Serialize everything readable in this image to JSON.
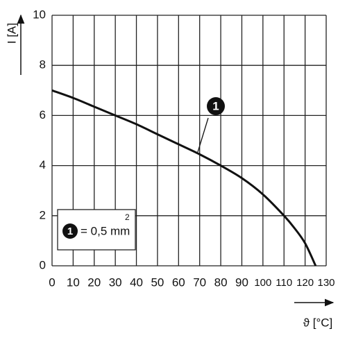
{
  "chart_data": {
    "type": "line",
    "y_label": "I [A]",
    "x_label": "ϑ [°C]",
    "x": [
      0,
      10,
      20,
      30,
      40,
      50,
      60,
      70,
      80,
      90,
      100,
      110,
      115,
      120,
      125
    ],
    "series": [
      {
        "name": "1",
        "color": "#111111",
        "values": [
          7.0,
          6.7,
          6.35,
          6.0,
          5.65,
          5.25,
          4.85,
          4.45,
          4.0,
          3.5,
          2.85,
          2.0,
          1.5,
          0.9,
          0
        ]
      }
    ],
    "legend": {
      "text": "= 0,5 mm",
      "superscript": "2"
    },
    "xlim": [
      0,
      130
    ],
    "xticks": [
      0,
      10,
      20,
      30,
      40,
      50,
      60,
      70,
      80,
      90,
      100,
      110,
      120,
      130
    ],
    "ylim": [
      0,
      10
    ],
    "yticks": [
      0,
      2,
      4,
      6,
      8,
      10
    ],
    "grid": true
  }
}
